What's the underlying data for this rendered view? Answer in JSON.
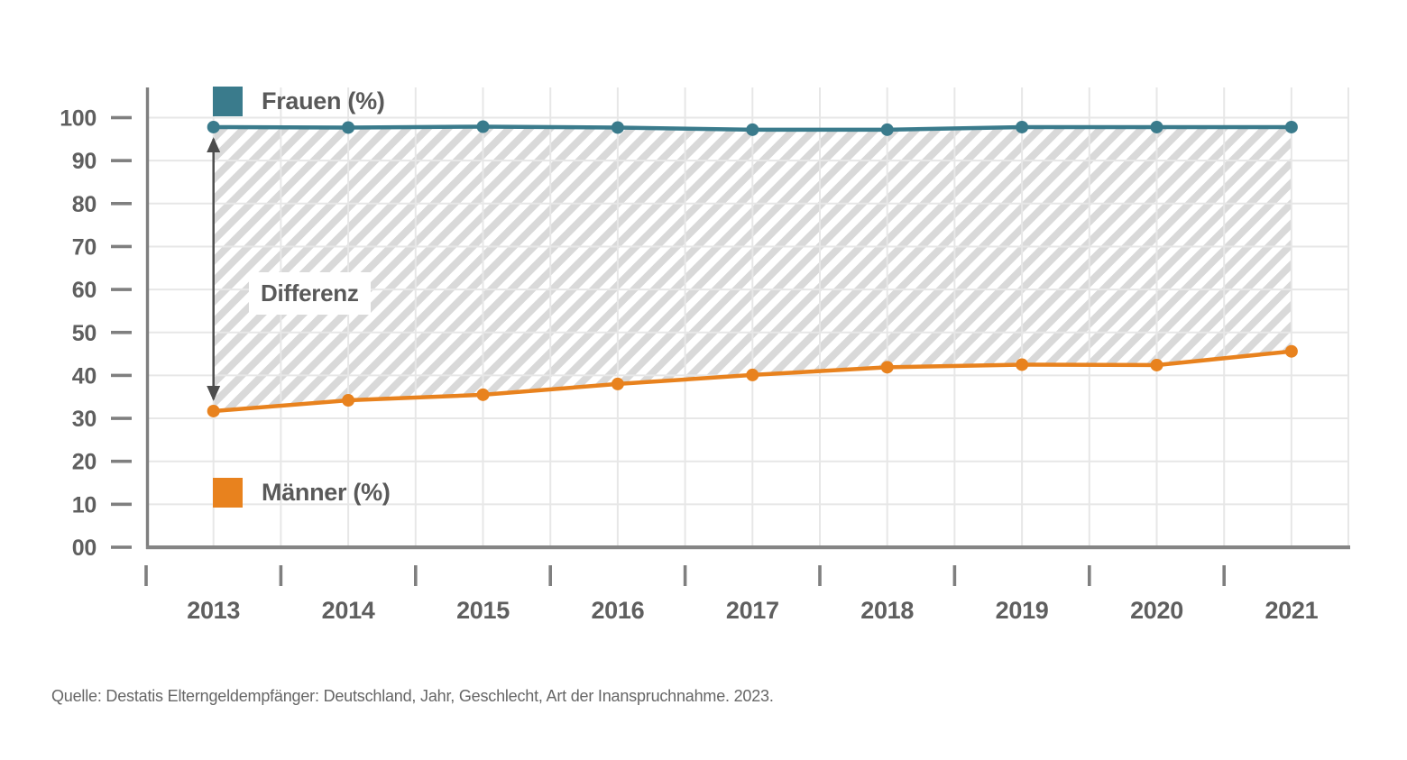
{
  "chart_data": {
    "type": "line",
    "title": "",
    "xlabel": "",
    "ylabel": "",
    "categories": [
      "2013",
      "2014",
      "2015",
      "2016",
      "2017",
      "2018",
      "2019",
      "2020",
      "2021"
    ],
    "series": [
      {
        "name": "Frauen (%)",
        "color": "#3A7B8C",
        "values": [
          97.8,
          97.7,
          97.9,
          97.7,
          97.2,
          97.2,
          97.8,
          97.8,
          97.8
        ]
      },
      {
        "name": "Männer (%)",
        "color": "#E8821E",
        "values": [
          31.7,
          34.2,
          35.5,
          38.0,
          40.1,
          41.9,
          42.5,
          42.4,
          45.6
        ]
      }
    ],
    "ylim": [
      0,
      100
    ],
    "ytick_step": 10,
    "ytick_labels": [
      "00",
      "10",
      "20",
      "30",
      "40",
      "50",
      "60",
      "70",
      "80",
      "90",
      "100"
    ],
    "grid": true,
    "hatched_area_between_series": true,
    "legend_position": "inside-plot-left",
    "annotations": [
      {
        "label": "Differenz",
        "type": "vertical-double-arrow",
        "at_category": "2013"
      }
    ]
  },
  "legend": {
    "frauen_label": "Frauen (%)",
    "maenner_label": "Männer (%)"
  },
  "annotation": {
    "differenz_label": "Differenz"
  },
  "footer": {
    "source": "Quelle: Destatis Elterngeldempfänger: Deutschland, Jahr, Geschlecht, Art der Inanspruchnahme. 2023."
  },
  "colors": {
    "frauen": "#3A7B8C",
    "maenner": "#E8821E",
    "text": "#595959",
    "axis_label_text": "#5f5f5f",
    "axis": "#7f7f7f",
    "gridline": "#e7e7e7",
    "hatch": "#d9d9d9",
    "arrow": "#4d4d4d",
    "source_text": "#666666",
    "background": "#ffffff"
  }
}
